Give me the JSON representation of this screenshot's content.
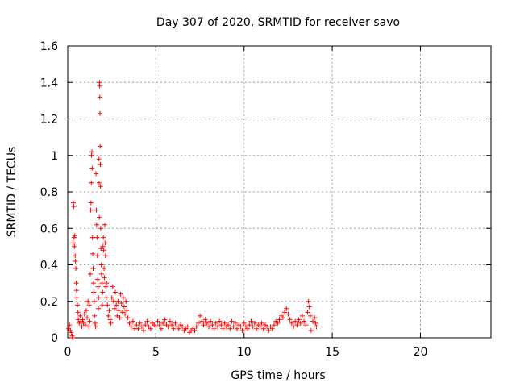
{
  "chart_data": {
    "type": "scatter",
    "title": "Day 307 of 2020, SRMTID for receiver savo",
    "xlabel": "GPS time / hours",
    "ylabel": "SRMTID / TECUs",
    "xlim": [
      0,
      24
    ],
    "ylim": [
      0,
      1.6
    ],
    "xticks": [
      0,
      5,
      10,
      15,
      20
    ],
    "xtick_labels": [
      "0",
      "5",
      "10",
      "15",
      "20"
    ],
    "yticks": [
      0,
      0.2,
      0.4,
      0.6,
      0.8,
      1,
      1.2,
      1.4,
      1.6
    ],
    "ytick_labels": [
      "0",
      "0.2",
      "0.4",
      "0.6",
      "0.8",
      "1",
      "1.2",
      "1.4",
      "1.6"
    ],
    "grid": true,
    "marker": "+",
    "color": "#ff0000",
    "series": [
      {
        "name": "SRMTID",
        "points": [
          [
            0.05,
            0.05
          ],
          [
            0.1,
            0.07
          ],
          [
            0.15,
            0.04
          ],
          [
            0.2,
            0.03
          ],
          [
            0.25,
            0.01
          ],
          [
            0.28,
            0.0
          ],
          [
            0.3,
            0.52
          ],
          [
            0.32,
            0.74
          ],
          [
            0.34,
            0.72
          ],
          [
            0.36,
            0.55
          ],
          [
            0.38,
            0.5
          ],
          [
            0.4,
            0.56
          ],
          [
            0.42,
            0.45
          ],
          [
            0.44,
            0.42
          ],
          [
            0.46,
            0.38
          ],
          [
            0.48,
            0.3
          ],
          [
            0.5,
            0.26
          ],
          [
            0.52,
            0.22
          ],
          [
            0.55,
            0.18
          ],
          [
            0.58,
            0.14
          ],
          [
            0.6,
            0.1
          ],
          [
            0.65,
            0.08
          ],
          [
            0.7,
            0.12
          ],
          [
            0.75,
            0.09
          ],
          [
            0.8,
            0.06
          ],
          [
            0.85,
            0.1
          ],
          [
            0.9,
            0.08
          ],
          [
            0.95,
            0.13
          ],
          [
            1.0,
            0.07
          ],
          [
            1.05,
            0.15
          ],
          [
            1.1,
            0.11
          ],
          [
            1.15,
            0.2
          ],
          [
            1.2,
            0.06
          ],
          [
            1.22,
            0.18
          ],
          [
            1.25,
            0.09
          ],
          [
            1.28,
            0.35
          ],
          [
            1.3,
            0.7
          ],
          [
            1.32,
            0.74
          ],
          [
            1.34,
            0.85
          ],
          [
            1.35,
            1.0
          ],
          [
            1.37,
            1.02
          ],
          [
            1.38,
            0.93
          ],
          [
            1.4,
            0.55
          ],
          [
            1.42,
            0.46
          ],
          [
            1.44,
            0.38
          ],
          [
            1.46,
            0.3
          ],
          [
            1.48,
            0.25
          ],
          [
            1.5,
            0.2
          ],
          [
            1.52,
            0.12
          ],
          [
            1.55,
            0.08
          ],
          [
            1.58,
            0.06
          ],
          [
            1.6,
            0.9
          ],
          [
            1.62,
            0.7
          ],
          [
            1.64,
            0.62
          ],
          [
            1.66,
            0.55
          ],
          [
            1.68,
            0.45
          ],
          [
            1.7,
            0.32
          ],
          [
            1.72,
            0.28
          ],
          [
            1.74,
            0.16
          ],
          [
            1.75,
            0.22
          ],
          [
            1.77,
            0.98
          ],
          [
            1.78,
            0.85
          ],
          [
            1.79,
            0.66
          ],
          [
            1.8,
            1.4
          ],
          [
            1.81,
            1.38
          ],
          [
            1.82,
            1.32
          ],
          [
            1.83,
            1.23
          ],
          [
            1.84,
            1.05
          ],
          [
            1.85,
            0.95
          ],
          [
            1.86,
            0.83
          ],
          [
            1.87,
            0.6
          ],
          [
            1.88,
            0.49
          ],
          [
            1.9,
            0.4
          ],
          [
            1.92,
            0.35
          ],
          [
            1.94,
            0.3
          ],
          [
            1.96,
            0.18
          ],
          [
            1.98,
            0.25
          ],
          [
            2.0,
            0.5
          ],
          [
            2.02,
            0.55
          ],
          [
            2.04,
            0.48
          ],
          [
            2.06,
            0.38
          ],
          [
            2.08,
            0.33
          ],
          [
            2.1,
            0.62
          ],
          [
            2.12,
            0.52
          ],
          [
            2.14,
            0.45
          ],
          [
            2.16,
            0.28
          ],
          [
            2.18,
            0.22
          ],
          [
            2.2,
            0.3
          ],
          [
            2.25,
            0.18
          ],
          [
            2.3,
            0.12
          ],
          [
            2.35,
            0.15
          ],
          [
            2.4,
            0.1
          ],
          [
            2.45,
            0.08
          ],
          [
            2.5,
            0.22
          ],
          [
            2.55,
            0.28
          ],
          [
            2.6,
            0.2
          ],
          [
            2.65,
            0.16
          ],
          [
            2.7,
            0.25
          ],
          [
            2.75,
            0.18
          ],
          [
            2.8,
            0.12
          ],
          [
            2.85,
            0.2
          ],
          [
            2.9,
            0.15
          ],
          [
            2.95,
            0.11
          ],
          [
            3.0,
            0.24
          ],
          [
            3.05,
            0.19
          ],
          [
            3.1,
            0.14
          ],
          [
            3.15,
            0.22
          ],
          [
            3.2,
            0.17
          ],
          [
            3.25,
            0.13
          ],
          [
            3.3,
            0.2
          ],
          [
            3.35,
            0.15
          ],
          [
            3.4,
            0.11
          ],
          [
            3.5,
            0.08
          ],
          [
            3.6,
            0.06
          ],
          [
            3.7,
            0.09
          ],
          [
            3.8,
            0.05
          ],
          [
            3.9,
            0.07
          ],
          [
            4.0,
            0.05
          ],
          [
            4.1,
            0.08
          ],
          [
            4.2,
            0.06
          ],
          [
            4.3,
            0.04
          ],
          [
            4.4,
            0.07
          ],
          [
            4.5,
            0.09
          ],
          [
            4.6,
            0.06
          ],
          [
            4.7,
            0.05
          ],
          [
            4.8,
            0.08
          ],
          [
            4.9,
            0.07
          ],
          [
            5.0,
            0.06
          ],
          [
            5.1,
            0.09
          ],
          [
            5.2,
            0.07
          ],
          [
            5.3,
            0.05
          ],
          [
            5.4,
            0.08
          ],
          [
            5.5,
            0.1
          ],
          [
            5.6,
            0.07
          ],
          [
            5.7,
            0.06
          ],
          [
            5.8,
            0.09
          ],
          [
            5.9,
            0.07
          ],
          [
            6.0,
            0.05
          ],
          [
            6.1,
            0.08
          ],
          [
            6.2,
            0.06
          ],
          [
            6.3,
            0.05
          ],
          [
            6.4,
            0.07
          ],
          [
            6.5,
            0.06
          ],
          [
            6.6,
            0.04
          ],
          [
            6.7,
            0.05
          ],
          [
            6.8,
            0.06
          ],
          [
            6.9,
            0.03
          ],
          [
            7.0,
            0.04
          ],
          [
            7.1,
            0.05
          ],
          [
            7.2,
            0.04
          ],
          [
            7.3,
            0.06
          ],
          [
            7.4,
            0.08
          ],
          [
            7.5,
            0.12
          ],
          [
            7.6,
            0.09
          ],
          [
            7.7,
            0.07
          ],
          [
            7.8,
            0.1
          ],
          [
            7.9,
            0.08
          ],
          [
            8.0,
            0.06
          ],
          [
            8.1,
            0.09
          ],
          [
            8.2,
            0.07
          ],
          [
            8.3,
            0.05
          ],
          [
            8.4,
            0.08
          ],
          [
            8.5,
            0.06
          ],
          [
            8.6,
            0.09
          ],
          [
            8.7,
            0.07
          ],
          [
            8.8,
            0.05
          ],
          [
            8.9,
            0.08
          ],
          [
            9.0,
            0.06
          ],
          [
            9.1,
            0.07
          ],
          [
            9.2,
            0.05
          ],
          [
            9.3,
            0.09
          ],
          [
            9.4,
            0.06
          ],
          [
            9.5,
            0.08
          ],
          [
            9.6,
            0.05
          ],
          [
            9.7,
            0.07
          ],
          [
            9.8,
            0.06
          ],
          [
            9.9,
            0.04
          ],
          [
            10.0,
            0.08
          ],
          [
            10.1,
            0.06
          ],
          [
            10.2,
            0.05
          ],
          [
            10.3,
            0.07
          ],
          [
            10.4,
            0.09
          ],
          [
            10.5,
            0.06
          ],
          [
            10.6,
            0.08
          ],
          [
            10.7,
            0.05
          ],
          [
            10.8,
            0.07
          ],
          [
            10.9,
            0.06
          ],
          [
            11.0,
            0.08
          ],
          [
            11.1,
            0.05
          ],
          [
            11.2,
            0.07
          ],
          [
            11.3,
            0.06
          ],
          [
            11.4,
            0.04
          ],
          [
            11.5,
            0.06
          ],
          [
            11.6,
            0.05
          ],
          [
            11.7,
            0.07
          ],
          [
            11.8,
            0.09
          ],
          [
            11.9,
            0.08
          ],
          [
            12.0,
            0.1
          ],
          [
            12.1,
            0.12
          ],
          [
            12.2,
            0.11
          ],
          [
            12.3,
            0.14
          ],
          [
            12.4,
            0.16
          ],
          [
            12.5,
            0.13
          ],
          [
            12.6,
            0.1
          ],
          [
            12.7,
            0.08
          ],
          [
            12.8,
            0.06
          ],
          [
            12.9,
            0.09
          ],
          [
            13.0,
            0.07
          ],
          [
            13.1,
            0.1
          ],
          [
            13.2,
            0.08
          ],
          [
            13.3,
            0.12
          ],
          [
            13.4,
            0.09
          ],
          [
            13.5,
            0.07
          ],
          [
            13.6,
            0.14
          ],
          [
            13.65,
            0.2
          ],
          [
            13.7,
            0.17
          ],
          [
            13.75,
            0.12
          ],
          [
            13.8,
            0.04
          ],
          [
            13.9,
            0.09
          ],
          [
            14.0,
            0.11
          ],
          [
            14.05,
            0.08
          ],
          [
            14.1,
            0.06
          ]
        ]
      }
    ]
  }
}
